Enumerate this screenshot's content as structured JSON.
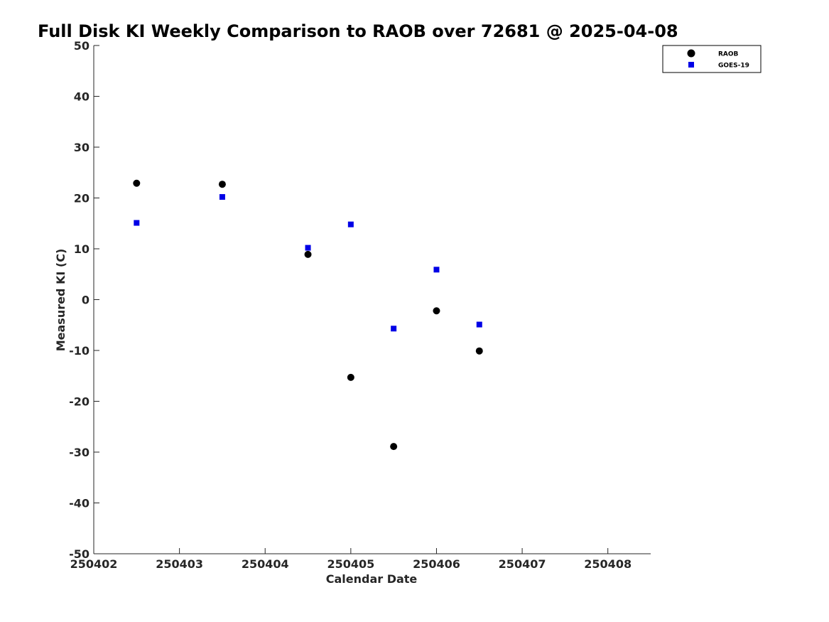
{
  "chart_data": {
    "type": "scatter",
    "title": "Full Disk KI Weekly Comparison to RAOB over 72681 @ 2025-04-08",
    "xlabel": "Calendar Date",
    "ylabel": "Measured KI (C)",
    "xlim": [
      250402,
      250408.5
    ],
    "ylim": [
      -50,
      50
    ],
    "xticks": [
      "250402",
      "250403",
      "250404",
      "250405",
      "250406",
      "250407",
      "250408"
    ],
    "yticks": [
      "50",
      "40",
      "30",
      "20",
      "10",
      "0",
      "-10",
      "-20",
      "-30",
      "-40",
      "-50"
    ],
    "legend_position": "top-right",
    "series": [
      {
        "name": "RAOB",
        "marker": "circle",
        "color": "#000000",
        "x": [
          250402.5,
          250403.5,
          250404.5,
          250405.0,
          250405.5,
          250406.0,
          250406.5
        ],
        "y": [
          22.9,
          22.7,
          8.9,
          -15.3,
          -28.9,
          -2.2,
          -10.1
        ]
      },
      {
        "name": "GOES-19",
        "marker": "square",
        "color": "#0000e6",
        "x": [
          250402.5,
          250403.5,
          250404.5,
          250405.0,
          250405.5,
          250406.0,
          250406.5
        ],
        "y": [
          15.1,
          20.2,
          10.2,
          14.8,
          -5.7,
          5.9,
          -4.9
        ]
      }
    ]
  }
}
